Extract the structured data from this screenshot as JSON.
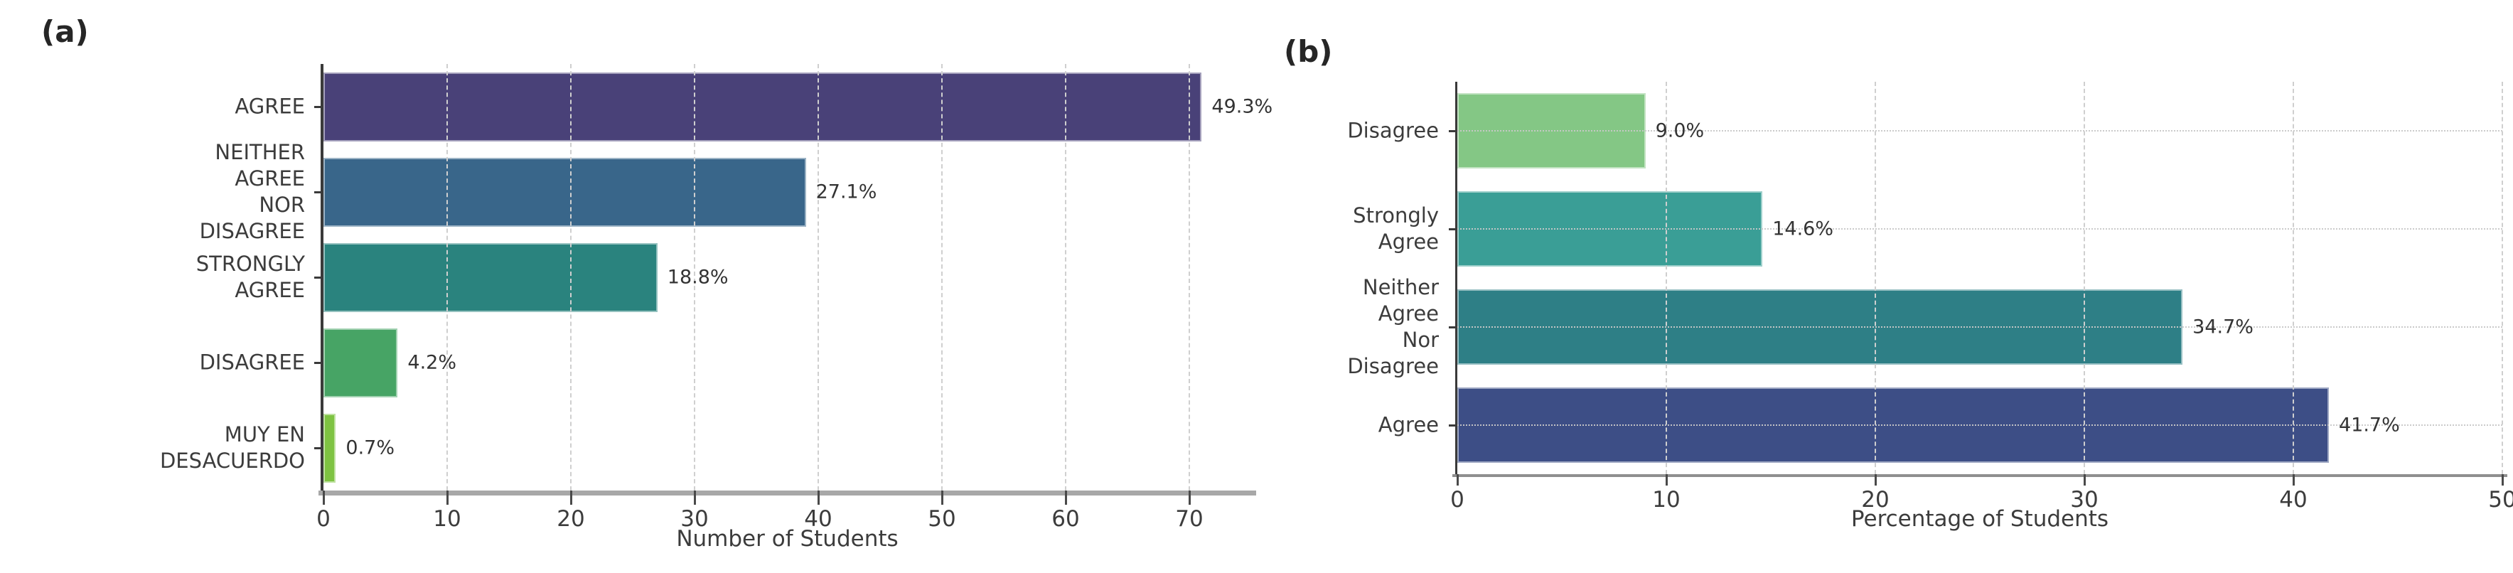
{
  "figure": {
    "background": "#ffffff",
    "panels": [
      "(a)",
      "(b)"
    ]
  },
  "chart_data": [
    {
      "type": "bar",
      "orientation": "horizontal",
      "panel_label": "(a)",
      "title": "",
      "categories": [
        "AGREE",
        "NEITHER AGREE\nNOR DISAGREE",
        "STRONGLY AGREE",
        "DISAGREE",
        "MUY EN DESACUERDO"
      ],
      "values": [
        71,
        39,
        27,
        6,
        1
      ],
      "value_labels": [
        "49.3%",
        "27.1%",
        "18.8%",
        "4.2%",
        "0.7%"
      ],
      "bar_colors": [
        "#494178",
        "#39668a",
        "#2a837e",
        "#47a465",
        "#7ec342"
      ],
      "xlabel": "Number of Students",
      "ylabel": "",
      "xlim": [
        0,
        75
      ],
      "xticks": [
        0,
        10,
        20,
        30,
        40,
        50,
        60,
        70
      ],
      "grid": "vertical-dashed",
      "legend": null
    },
    {
      "type": "bar",
      "orientation": "horizontal",
      "panel_label": "(b)",
      "title": "",
      "categories": [
        "Disagree",
        "Strongly Agree",
        "Neither Agree\nNor Disagree",
        "Agree"
      ],
      "values": [
        9.0,
        14.6,
        34.7,
        41.7
      ],
      "value_labels": [
        "9.0%",
        "14.6%",
        "34.7%",
        "41.7%"
      ],
      "bar_colors": [
        "#84c785",
        "#3a9e96",
        "#2e7f86",
        "#3d4e86"
      ],
      "xlabel": "Percentage of Students",
      "ylabel": "",
      "xlim": [
        0,
        50
      ],
      "xticks": [
        0,
        10,
        20,
        30,
        40,
        50
      ],
      "grid": "vertical-dashed + horizontal-dotted",
      "legend": null
    }
  ]
}
